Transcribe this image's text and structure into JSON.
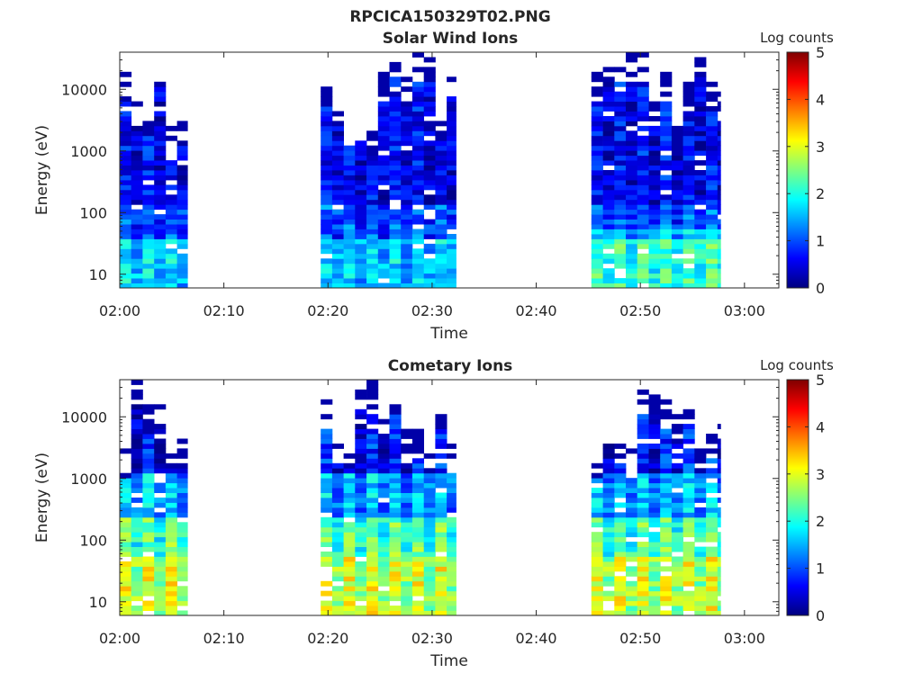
{
  "figure_title": "RPCICA150329T02.PNG",
  "colormap": [
    "#00007f",
    "#0000ff",
    "#007fff",
    "#00ffff",
    "#7fff7f",
    "#ffff00",
    "#ff7f00",
    "#ff0000",
    "#7f0000"
  ],
  "chart_data": [
    {
      "type": "heatmap",
      "title": "Solar Wind Ions",
      "xlabel": "Time",
      "ylabel": "Energy (eV)",
      "x_ticks": [
        "02:00",
        "02:10",
        "02:20",
        "02:30",
        "02:40",
        "02:50",
        "03:00"
      ],
      "x_tick_minutes": [
        0,
        10,
        20,
        30,
        40,
        50,
        60
      ],
      "xlim_minutes": [
        0,
        63.3
      ],
      "y_scale": "log",
      "y_ticks": [
        "10",
        "100",
        "1000",
        "10000"
      ],
      "y_tick_values": [
        10,
        100,
        1000,
        10000
      ],
      "ylim": [
        6,
        40000
      ],
      "colorbar_label": "Log counts",
      "colorbar_ticks": [
        "0",
        "1",
        "2",
        "3",
        "4",
        "5"
      ],
      "clim": [
        0,
        5
      ],
      "data_intervals_minutes": [
        [
          0,
          6.5
        ],
        [
          19.3,
          32.3
        ],
        [
          45.3,
          57.7
        ]
      ],
      "profile": "solar"
    },
    {
      "type": "heatmap",
      "title": "Cometary Ions",
      "xlabel": "Time",
      "ylabel": "Energy (eV)",
      "x_ticks": [
        "02:00",
        "02:10",
        "02:20",
        "02:30",
        "02:40",
        "02:50",
        "03:00"
      ],
      "x_tick_minutes": [
        0,
        10,
        20,
        30,
        40,
        50,
        60
      ],
      "xlim_minutes": [
        0,
        63.3
      ],
      "y_scale": "log",
      "y_ticks": [
        "10",
        "100",
        "1000",
        "10000"
      ],
      "y_tick_values": [
        10,
        100,
        1000,
        10000
      ],
      "ylim": [
        6,
        40000
      ],
      "colorbar_label": "Log counts",
      "colorbar_ticks": [
        "0",
        "1",
        "2",
        "3",
        "4",
        "5"
      ],
      "clim": [
        0,
        5
      ],
      "data_intervals_minutes": [
        [
          0,
          6.5
        ],
        [
          19.3,
          32.3
        ],
        [
          45.3,
          57.7
        ]
      ],
      "profile": "cometary"
    }
  ]
}
